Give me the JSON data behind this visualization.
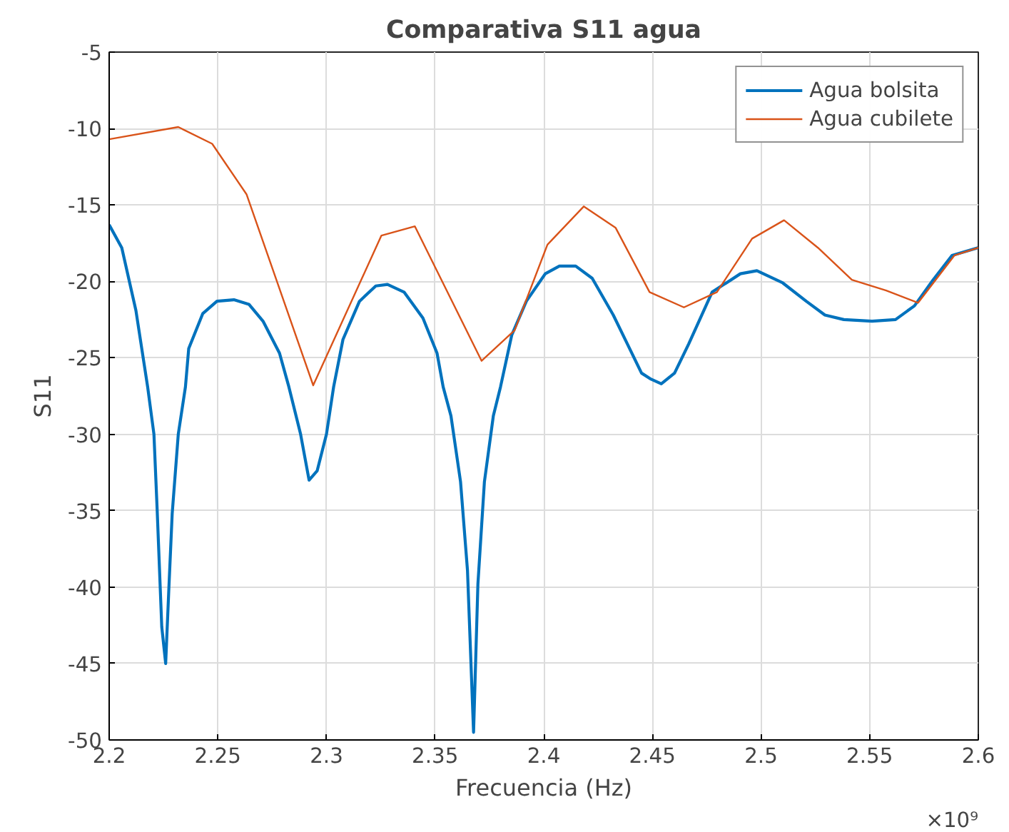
{
  "chart_data": {
    "type": "line",
    "title": "Comparativa S11 agua",
    "xlabel": "Frecuencia (Hz)",
    "ylabel": "S11",
    "annotations": [
      "×10⁹"
    ],
    "xlim": [
      2.2,
      2.6
    ],
    "xticks": [
      2.2,
      2.25,
      2.3,
      2.35,
      2.4,
      2.45,
      2.5,
      2.55,
      2.6
    ],
    "ylim": [
      -50,
      -5
    ],
    "yticks": [
      -50,
      -45,
      -40,
      -35,
      -30,
      -25,
      -20,
      -15,
      -10,
      -5
    ],
    "grid": true,
    "legend": "top right",
    "line_style": "solid",
    "marker": "none",
    "series": [
      {
        "name": "Agua bolsita",
        "color": "#0072bd",
        "x": [
          2.2,
          2.2058,
          2.2123,
          2.2177,
          2.2206,
          2.2221,
          2.2242,
          2.226,
          2.2275,
          2.229,
          2.2318,
          2.2351,
          2.2366,
          2.2431,
          2.2496,
          2.2574,
          2.2643,
          2.2708,
          2.2784,
          2.2827,
          2.2881,
          2.292,
          2.2957,
          2.3,
          2.3033,
          2.3076,
          2.3152,
          2.3227,
          2.3281,
          2.3357,
          2.3444,
          2.3509,
          2.3537,
          2.3573,
          2.3617,
          2.3649,
          2.3677,
          2.3697,
          2.3727,
          2.3768,
          2.3801,
          2.3853,
          2.392,
          2.4007,
          2.4072,
          2.4147,
          2.4223,
          2.432,
          2.4385,
          2.445,
          2.4494,
          2.4541,
          2.4602,
          2.4667,
          2.4775,
          2.4905,
          2.4981,
          2.51,
          2.5208,
          2.5294,
          2.5381,
          2.5511,
          2.5619,
          2.5706,
          2.5792,
          2.5879,
          2.5998
        ],
        "values": [
          -16.3,
          -17.8,
          -21.9,
          -26.9,
          -30,
          -35,
          -42.6,
          -45,
          -40,
          -35.2,
          -30,
          -26.9,
          -24.4,
          -22.1,
          -21.3,
          -21.2,
          -21.5,
          -22.6,
          -24.7,
          -26.9,
          -30,
          -33,
          -32.4,
          -30,
          -26.9,
          -23.8,
          -21.3,
          -20.3,
          -20.2,
          -20.7,
          -22.4,
          -24.7,
          -26.9,
          -28.8,
          -33.1,
          -38.9,
          -49.5,
          -39.8,
          -33.1,
          -28.8,
          -26.9,
          -23.5,
          -21.3,
          -19.5,
          -19,
          -19,
          -19.8,
          -22.2,
          -24.1,
          -26,
          -26.4,
          -26.7,
          -26,
          -24.1,
          -20.7,
          -19.5,
          -19.3,
          -20.1,
          -21.3,
          -22.2,
          -22.5,
          -22.6,
          -22.5,
          -21.6,
          -19.9,
          -18.3,
          -17.8
        ]
      },
      {
        "name": "Agua cubilete",
        "color": "#d95319",
        "x": [
          2.2,
          2.2318,
          2.2474,
          2.2632,
          2.2939,
          2.3253,
          2.3407,
          2.3714,
          2.3866,
          2.4017,
          2.4184,
          2.4331,
          2.4487,
          2.4645,
          2.4797,
          2.4959,
          2.5106,
          2.5262,
          2.5418,
          2.5576,
          2.5723,
          2.589,
          2.6
        ],
        "values": [
          -10.7,
          -9.9,
          -11,
          -14.3,
          -26.8,
          -17,
          -16.4,
          -25.2,
          -23.2,
          -17.6,
          -15.1,
          -16.5,
          -20.7,
          -21.7,
          -20.7,
          -17.2,
          -16,
          -17.8,
          -19.9,
          -20.6,
          -21.4,
          -18.3,
          -17.8
        ]
      }
    ]
  }
}
